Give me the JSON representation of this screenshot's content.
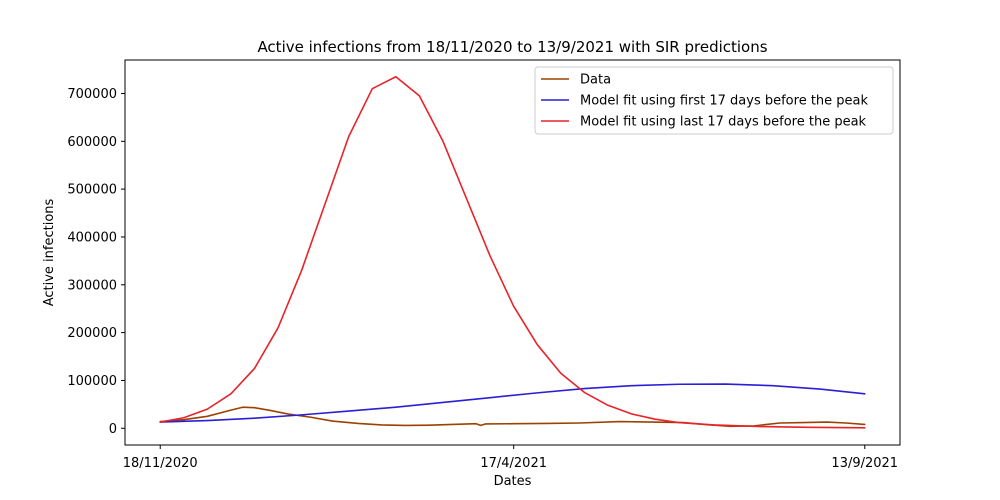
{
  "chart_data": {
    "type": "line",
    "title": "Active infections from 18/11/2020 to 13/9/2021 with SIR predictions",
    "xlabel": "Dates",
    "ylabel": "Active infections",
    "x_ticks": [
      "18/11/2020",
      "17/4/2021",
      "13/9/2021"
    ],
    "x_range": [
      "18/11/2020",
      "13/9/2021"
    ],
    "y_ticks": [
      0,
      100000,
      200000,
      300000,
      400000,
      500000,
      600000,
      700000
    ],
    "ylim": [
      -35000,
      770000
    ],
    "grid": false,
    "legend_position": "upper right",
    "series": [
      {
        "name": "Data",
        "color": "#9c4200",
        "points": [
          [
            "18/11/2020",
            14000
          ],
          [
            "28/11/2020",
            18000
          ],
          [
            "8/12/2020",
            25000
          ],
          [
            "18/12/2020",
            38000
          ],
          [
            "23/12/2020",
            44000
          ],
          [
            "28/12/2020",
            43000
          ],
          [
            "4/1/2021",
            37000
          ],
          [
            "11/1/2021",
            30000
          ],
          [
            "21/1/2021",
            23000
          ],
          [
            "30/1/2021",
            15000
          ],
          [
            "10/2/2021",
            10000
          ],
          [
            "20/2/2021",
            7000
          ],
          [
            "2/3/2021",
            6000
          ],
          [
            "12/3/2021",
            6500
          ],
          [
            "22/3/2021",
            8000
          ],
          [
            "1/4/2021",
            9500
          ],
          [
            "3/4/2021",
            6000
          ],
          [
            "5/4/2021",
            9000
          ],
          [
            "17/4/2021",
            9500
          ],
          [
            "1/5/2021",
            10000
          ],
          [
            "15/5/2021",
            11000
          ],
          [
            "1/6/2021",
            14000
          ],
          [
            "15/6/2021",
            13000
          ],
          [
            "28/6/2021",
            12000
          ],
          [
            "8/7/2021",
            7500
          ],
          [
            "18/7/2021",
            4000
          ],
          [
            "28/7/2021",
            5000
          ],
          [
            "8/8/2021",
            11000
          ],
          [
            "18/8/2021",
            12000
          ],
          [
            "28/8/2021",
            13000
          ],
          [
            "5/9/2021",
            11000
          ],
          [
            "13/9/2021",
            8000
          ]
        ]
      },
      {
        "name": "Model fit using first 17 days before the peak",
        "color": "#2a1fd6",
        "points": [
          [
            "18/11/2020",
            13000
          ],
          [
            "8/12/2020",
            16000
          ],
          [
            "28/12/2020",
            21000
          ],
          [
            "17/1/2021",
            28000
          ],
          [
            "6/2/2021",
            36000
          ],
          [
            "26/2/2021",
            44000
          ],
          [
            "18/3/2021",
            54000
          ],
          [
            "7/4/2021",
            64000
          ],
          [
            "27/4/2021",
            74000
          ],
          [
            "17/5/2021",
            83000
          ],
          [
            "6/6/2021",
            89000
          ],
          [
            "26/6/2021",
            92000
          ],
          [
            "16/7/2021",
            92500
          ],
          [
            "5/8/2021",
            89000
          ],
          [
            "25/8/2021",
            82000
          ],
          [
            "13/9/2021",
            72000
          ]
        ]
      },
      {
        "name": "Model fit using last 17 days before the peak",
        "color": "#e8232a",
        "points": [
          [
            "18/11/2020",
            13000
          ],
          [
            "28/11/2020",
            22000
          ],
          [
            "8/12/2020",
            40000
          ],
          [
            "18/12/2020",
            72000
          ],
          [
            "28/12/2020",
            125000
          ],
          [
            "7/1/2021",
            210000
          ],
          [
            "17/1/2021",
            330000
          ],
          [
            "27/1/2021",
            470000
          ],
          [
            "6/2/2021",
            610000
          ],
          [
            "16/2/2021",
            710000
          ],
          [
            "26/2/2021",
            735000
          ],
          [
            "8/3/2021",
            695000
          ],
          [
            "18/3/2021",
            600000
          ],
          [
            "28/3/2021",
            480000
          ],
          [
            "7/4/2021",
            360000
          ],
          [
            "17/4/2021",
            255000
          ],
          [
            "27/4/2021",
            175000
          ],
          [
            "7/5/2021",
            115000
          ],
          [
            "17/5/2021",
            75000
          ],
          [
            "27/5/2021",
            48000
          ],
          [
            "6/6/2021",
            30000
          ],
          [
            "16/6/2021",
            19000
          ],
          [
            "26/6/2021",
            12000
          ],
          [
            "11/7/2021",
            7000
          ],
          [
            "31/7/2021",
            3500
          ],
          [
            "20/8/2021",
            2000
          ],
          [
            "13/9/2021",
            1000
          ]
        ]
      }
    ]
  }
}
